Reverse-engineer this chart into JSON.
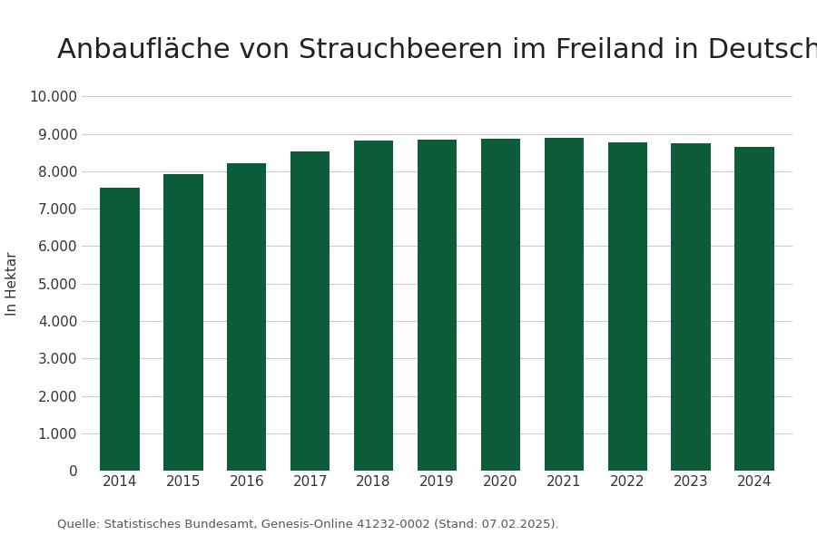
{
  "title": "Anbaufläche von Strauchbeeren im Freiland in Deutschland",
  "ylabel": "In Hektar",
  "source": "Quelle: Statistisches Bundesamt, Genesis-Online 41232-0002 (Stand: 07.02.2025).",
  "years": [
    2014,
    2015,
    2016,
    2017,
    2018,
    2019,
    2020,
    2021,
    2022,
    2023,
    2024
  ],
  "values": [
    7560,
    7930,
    8220,
    8530,
    8820,
    8850,
    8870,
    8890,
    8780,
    8750,
    8640
  ],
  "bar_color": "#0d5c3a",
  "background_color": "#ffffff",
  "ylim": [
    0,
    10000
  ],
  "yticks": [
    0,
    1000,
    2000,
    3000,
    4000,
    5000,
    6000,
    7000,
    8000,
    9000,
    10000
  ],
  "grid_color": "#cccccc",
  "title_fontsize": 22,
  "axis_fontsize": 11,
  "tick_fontsize": 11,
  "source_fontsize": 9.5
}
